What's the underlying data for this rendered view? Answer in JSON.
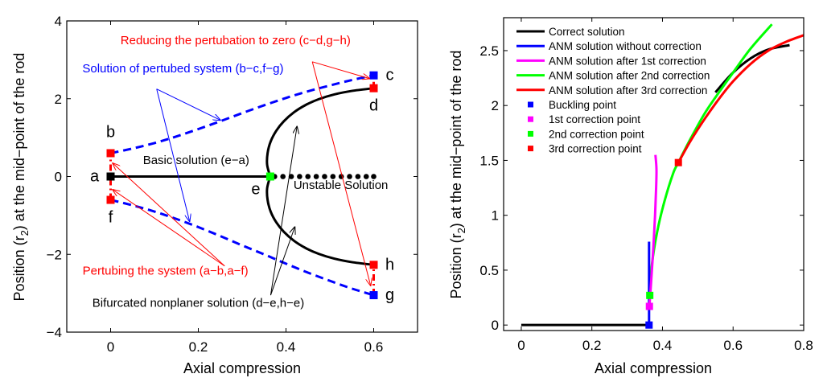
{
  "chart_data": [
    {
      "type": "line",
      "panel": "left",
      "title": "",
      "xlabel": "Axial compression",
      "ylabel_parts": [
        "Position (r",
        "2",
        ") at the mid−point of the rod"
      ],
      "xlim": [
        -0.1,
        0.7
      ],
      "ylim": [
        -4,
        4
      ],
      "xticks": [
        0,
        0.2,
        0.4,
        0.6
      ],
      "xtick_labels": [
        "0",
        "0.2",
        "0.4",
        "0.6"
      ],
      "yticks": [
        -4,
        -2,
        0,
        2,
        4
      ],
      "ytick_labels": [
        "−4",
        "−2",
        "0",
        "2",
        "4"
      ],
      "grid": false,
      "series": [
        {
          "name": "Basic solution (e−a)",
          "color": "#000000",
          "style": "solid",
          "x": [
            0,
            0.364
          ],
          "y": [
            0,
            0
          ]
        },
        {
          "name": "Unstable Solution",
          "color": "#000000",
          "style": "dots",
          "x": [
            0.374,
            0.393,
            0.412,
            0.431,
            0.45,
            0.469,
            0.488,
            0.507,
            0.526,
            0.545,
            0.564,
            0.583,
            0.6
          ],
          "y": [
            0,
            0,
            0,
            0,
            0,
            0,
            0,
            0,
            0,
            0,
            0,
            0,
            0
          ]
        },
        {
          "name": "Bifurcated nonplaner solution (upper, d−e)",
          "color": "#000000",
          "style": "solid",
          "x": [
            0.364,
            0.357,
            0.358,
            0.365,
            0.378,
            0.395,
            0.418,
            0.445,
            0.475,
            0.51,
            0.55,
            0.6
          ],
          "y": [
            0,
            0.3,
            0.6,
            0.9,
            1.18,
            1.42,
            1.65,
            1.84,
            1.99,
            2.11,
            2.2,
            2.27
          ]
        },
        {
          "name": "Bifurcated nonplaner solution (lower, h−e)",
          "color": "#000000",
          "style": "solid",
          "x": [
            0.364,
            0.357,
            0.358,
            0.365,
            0.378,
            0.395,
            0.418,
            0.445,
            0.475,
            0.51,
            0.55,
            0.6
          ],
          "y": [
            0,
            -0.3,
            -0.6,
            -0.9,
            -1.18,
            -1.42,
            -1.65,
            -1.84,
            -1.99,
            -2.11,
            -2.2,
            -2.27
          ]
        },
        {
          "name": "Solution of pertubed system (b−c)",
          "color": "#0000ff",
          "style": "dashed",
          "x": [
            0,
            0.05,
            0.1,
            0.15,
            0.2,
            0.25,
            0.3,
            0.35,
            0.4,
            0.45,
            0.5,
            0.55,
            0.6
          ],
          "y": [
            0.6,
            0.72,
            0.86,
            1.03,
            1.22,
            1.42,
            1.63,
            1.83,
            2.02,
            2.19,
            2.34,
            2.48,
            2.6
          ]
        },
        {
          "name": "Solution of pertubed system (f−g)",
          "color": "#0000ff",
          "style": "dashed",
          "x": [
            0,
            0.05,
            0.1,
            0.15,
            0.2,
            0.25,
            0.3,
            0.35,
            0.4,
            0.45,
            0.5,
            0.55,
            0.6
          ],
          "y": [
            -0.6,
            -0.74,
            -0.9,
            -1.09,
            -1.3,
            -1.53,
            -1.77,
            -2.0,
            -2.24,
            -2.47,
            -2.68,
            -2.88,
            -3.05
          ]
        },
        {
          "name": "Pertubing the system (a−b,a−f)",
          "color": "#ff0000",
          "style": "dashdot",
          "x": [
            0,
            0
          ],
          "y": [
            -0.6,
            0.6
          ]
        },
        {
          "name": "Reducing the pertubation (c−d)",
          "color": "#ff0000",
          "style": "dashdot",
          "x": [
            0.6,
            0.6
          ],
          "y": [
            2.27,
            2.6
          ]
        },
        {
          "name": "Reducing the pertubation (g−h)",
          "color": "#ff0000",
          "style": "dashdot",
          "x": [
            0.6,
            0.6
          ],
          "y": [
            -3.05,
            -2.27
          ]
        }
      ],
      "markers": [
        {
          "label": "a",
          "x": 0,
          "y": 0,
          "color": "#000000"
        },
        {
          "label": "b",
          "x": 0,
          "y": 0.6,
          "color": "#ff0000"
        },
        {
          "label": "f",
          "x": 0,
          "y": -0.6,
          "color": "#ff0000"
        },
        {
          "label": "c",
          "x": 0.6,
          "y": 2.6,
          "color": "#0000ff"
        },
        {
          "label": "d",
          "x": 0.6,
          "y": 2.27,
          "color": "#ff0000"
        },
        {
          "label": "h",
          "x": 0.6,
          "y": -2.27,
          "color": "#ff0000"
        },
        {
          "label": "g",
          "x": 0.6,
          "y": -3.05,
          "color": "#0000ff"
        },
        {
          "label": "e",
          "x": 0.364,
          "y": 0,
          "color": "#00ff00"
        }
      ],
      "annotations": [
        {
          "text": "Reducing the pertubation to zero (c−d,g−h)",
          "color": "#ff0000",
          "x": 0.285,
          "y": 3.4,
          "arrows": [
            {
              "from": [
                0.46,
                2.95
              ],
              "to": [
                0.59,
                2.52
              ]
            },
            {
              "from": [
                0.46,
                2.95
              ],
              "to": [
                0.593,
                -2.8
              ]
            }
          ]
        },
        {
          "text": "Solution of pertubed system (b−c,f−g)",
          "color": "#0000ff",
          "x": 0.165,
          "y": 2.68,
          "arrows": [
            {
              "from": [
                0.105,
                2.25
              ],
              "to": [
                0.25,
                1.45
              ]
            },
            {
              "from": [
                0.105,
                2.25
              ],
              "to": [
                0.18,
                -1.15
              ]
            }
          ]
        },
        {
          "text": "Basic solution (e−a)",
          "color": "#000000",
          "x": 0.195,
          "y": 0.32,
          "arrows": []
        },
        {
          "text": "Unstable Solution",
          "color": "#000000",
          "x": 0.525,
          "y": -0.32,
          "arrows": []
        },
        {
          "text": "Pertubing the system (a−b,a−f)",
          "color": "#ff0000",
          "x": 0.125,
          "y": -2.52,
          "arrows": [
            {
              "from": [
                0.26,
                -2.3
              ],
              "to": [
                0.005,
                0.34
              ]
            },
            {
              "from": [
                0.26,
                -2.3
              ],
              "to": [
                0.005,
                -0.34
              ]
            }
          ]
        },
        {
          "text": "Bifurcated nonplaner solution (d−e,h−e)",
          "color": "#000000",
          "x": 0.2,
          "y": -3.35,
          "arrows": [
            {
              "from": [
                0.365,
                -3.05
              ],
              "to": [
                0.425,
                1.28
              ]
            },
            {
              "from": [
                0.365,
                -3.05
              ],
              "to": [
                0.42,
                -1.3
              ]
            }
          ]
        }
      ]
    },
    {
      "type": "line",
      "panel": "right",
      "title": "",
      "xlabel": "Axial compression",
      "ylabel_parts": [
        "Position (r",
        "2",
        ") at the mid−point of the rod"
      ],
      "xlim": [
        -0.05,
        0.8
      ],
      "ylim": [
        -0.05,
        2.8
      ],
      "xticks": [
        0,
        0.2,
        0.4,
        0.6,
        0.8
      ],
      "xtick_labels": [
        "0",
        "0.2",
        "0.4",
        "0.6",
        "0.8"
      ],
      "yticks": [
        0,
        0.5,
        1,
        1.5,
        2,
        2.5
      ],
      "ytick_labels": [
        "0",
        "0.5",
        "1",
        "1.5",
        "2",
        "2.5"
      ],
      "grid": false,
      "legend_position": "top-left",
      "series": [
        {
          "name": "Correct solution",
          "color": "#000000",
          "x": [
            0,
            0.362,
            0.4,
            0.45,
            0.5,
            0.55,
            0.6,
            0.65,
            0.7,
            0.76
          ],
          "y": [
            0,
            0,
            0.9,
            1.48,
            1.86,
            2.12,
            2.3,
            2.43,
            2.51,
            2.55
          ]
        },
        {
          "name": "ANM solution without correction",
          "color": "#0000ff",
          "x": [
            0.362,
            0.362
          ],
          "y": [
            0,
            0.76
          ]
        },
        {
          "name": "ANM solution after 1st correction",
          "color": "#ff00ff",
          "x": [
            0.363,
            0.368,
            0.374,
            0.379,
            0.382,
            0.383,
            0.38
          ],
          "y": [
            0.17,
            0.4,
            0.7,
            1.0,
            1.25,
            1.42,
            1.55
          ]
        },
        {
          "name": "ANM solution after 2nd correction",
          "color": "#00ff00",
          "x": [
            0.364,
            0.37,
            0.385,
            0.405,
            0.43,
            0.445,
            0.48,
            0.52,
            0.56,
            0.6,
            0.65,
            0.71
          ],
          "y": [
            0.27,
            0.55,
            0.85,
            1.12,
            1.38,
            1.48,
            1.7,
            1.93,
            2.12,
            2.3,
            2.52,
            2.74
          ]
        },
        {
          "name": "ANM solution after 3rd correction",
          "color": "#ff0000",
          "x": [
            0.445,
            0.48,
            0.52,
            0.56,
            0.6,
            0.65,
            0.7,
            0.75,
            0.8
          ],
          "y": [
            1.48,
            1.68,
            1.88,
            2.06,
            2.22,
            2.38,
            2.5,
            2.58,
            2.64
          ]
        }
      ],
      "points": [
        {
          "name": "Buckling point",
          "color": "#0000ff",
          "x": 0.362,
          "y": 0
        },
        {
          "name": "1st correction point",
          "color": "#ff00ff",
          "x": 0.363,
          "y": 0.17
        },
        {
          "name": "2nd correction point",
          "color": "#00ff00",
          "x": 0.364,
          "y": 0.27
        },
        {
          "name": "3rd correction point",
          "color": "#ff0000",
          "x": 0.445,
          "y": 1.48
        }
      ]
    }
  ]
}
